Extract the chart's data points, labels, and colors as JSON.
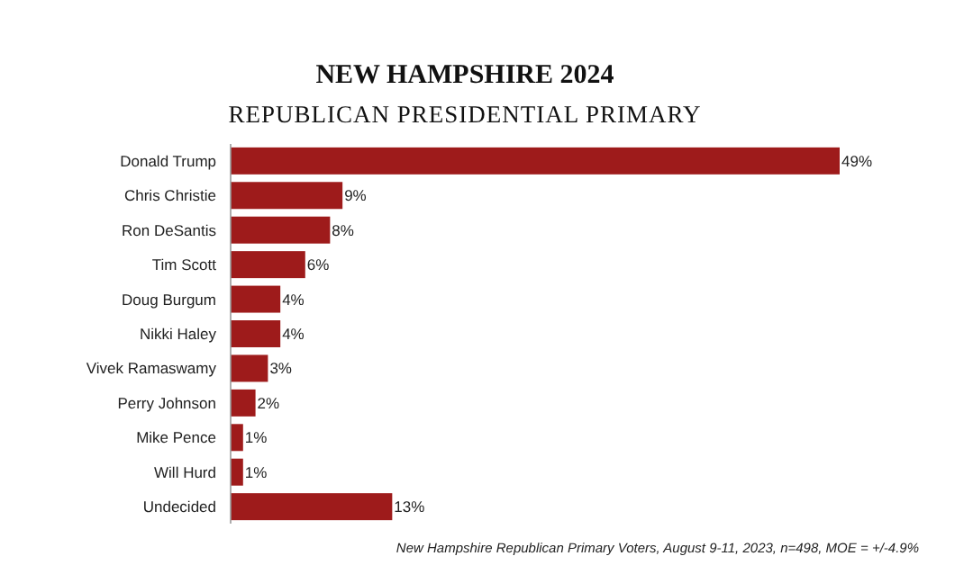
{
  "chart_data": {
    "type": "bar",
    "orientation": "horizontal",
    "title": "NEW HAMPSHIRE 2024",
    "subtitle": "REPUBLICAN PRESIDENTIAL PRIMARY",
    "categories": [
      "Donald Trump",
      "Chris Christie",
      "Ron DeSantis",
      "Tim Scott",
      "Doug Burgum",
      "Nikki Haley",
      "Vivek Ramaswamy",
      "Perry Johnson",
      "Mike Pence",
      "Will Hurd",
      "Undecided"
    ],
    "values": [
      49,
      9,
      8,
      6,
      4,
      4,
      3,
      2,
      1,
      1,
      13
    ],
    "value_labels": [
      "49%",
      "9%",
      "8%",
      "6%",
      "4%",
      "4%",
      "3%",
      "2%",
      "1%",
      "1%",
      "13%"
    ],
    "color": "#9e1b1b",
    "annotations": [
      "New Hampshire Republican Primary Voters, August 9-11, 2023, n=498, MOE = +/-4.9%"
    ]
  }
}
